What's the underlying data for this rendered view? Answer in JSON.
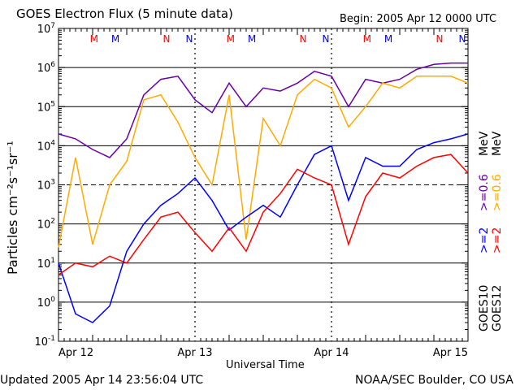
{
  "title": "GOES Electron Flux (5 minute data)",
  "begin": "Begin: 2005 Apr 12 0000 UTC",
  "updated": "Updated 2005 Apr 14 23:56:04 UTC",
  "credit": "NOAA/SEC Boulder, CO USA",
  "ylabel_text": "Particles cm⁻²s⁻¹sr⁻¹",
  "xlabel": "Universal Time",
  "legend": {
    "goes10": "GOES10",
    "goes12": "GOES12",
    "g10_2": ">=2",
    "g10_06": ">=0.6",
    "g12_2": ">=2",
    "g12_06": ">=0.6",
    "unit_a": "MeV",
    "unit_b": "MeV"
  },
  "colors": {
    "g10_2": "#0000ff",
    "g10_06": "#6600aa",
    "g12_2": "#ff0000",
    "g12_06": "#ffaa00"
  },
  "chart_data": {
    "type": "line",
    "title": "GOES Electron Flux (5 minute data)",
    "xlabel": "Universal Time",
    "ylabel": "Particles cm-2 s-1 sr-1",
    "y_scale": "log",
    "ylim": [
      0.1,
      10000000
    ],
    "xlim": [
      "2005-04-12 00:00",
      "2005-04-15 00:00"
    ],
    "x_ticks": [
      "Apr 12",
      "Apr 13",
      "Apr 14",
      "Apr 15"
    ],
    "y_ticks": [
      "10-1",
      "100",
      "101",
      "102",
      "103",
      "104",
      "105",
      "106",
      "107"
    ],
    "markers": [
      {
        "label": "M",
        "color": "#ff0000",
        "time": "Apr 12 06:15"
      },
      {
        "label": "M",
        "color": "#0000ff",
        "time": "Apr 12 10:00"
      },
      {
        "label": "N",
        "color": "#ff0000",
        "time": "Apr 12 19:00"
      },
      {
        "label": "N",
        "color": "#0000ff",
        "time": "Apr 12 23:00"
      },
      {
        "label": "M",
        "color": "#ff0000",
        "time": "Apr 13 06:15"
      },
      {
        "label": "M",
        "color": "#0000ff",
        "time": "Apr 13 10:00"
      },
      {
        "label": "N",
        "color": "#ff0000",
        "time": "Apr 13 19:00"
      },
      {
        "label": "N",
        "color": "#0000ff",
        "time": "Apr 13 23:00"
      },
      {
        "label": "M",
        "color": "#ff0000",
        "time": "Apr 14 06:15"
      },
      {
        "label": "M",
        "color": "#0000ff",
        "time": "Apr 14 10:00"
      },
      {
        "label": "N",
        "color": "#ff0000",
        "time": "Apr 14 19:00"
      },
      {
        "label": "N",
        "color": "#0000ff",
        "time": "Apr 14 23:00"
      }
    ],
    "x": [
      "Apr 12 00:00",
      "Apr 12 03:00",
      "Apr 12 06:00",
      "Apr 12 09:00",
      "Apr 12 12:00",
      "Apr 12 15:00",
      "Apr 12 18:00",
      "Apr 12 21:00",
      "Apr 13 00:00",
      "Apr 13 03:00",
      "Apr 13 06:00",
      "Apr 13 09:00",
      "Apr 13 12:00",
      "Apr 13 15:00",
      "Apr 13 18:00",
      "Apr 13 21:00",
      "Apr 14 00:00",
      "Apr 14 03:00",
      "Apr 14 06:00",
      "Apr 14 09:00",
      "Apr 14 12:00",
      "Apr 14 15:00",
      "Apr 14 18:00",
      "Apr 14 21:00",
      "Apr 15 00:00"
    ],
    "series": [
      {
        "name": "GOES10 >=0.6 MeV",
        "color": "#6600aa",
        "values": [
          20000,
          15000,
          8000,
          5000,
          15000,
          200000,
          500000,
          600000,
          150000,
          70000,
          400000,
          100000,
          300000,
          250000,
          400000,
          800000,
          600000,
          100000,
          500000,
          400000,
          500000,
          900000,
          1200000,
          1300000,
          1300000
        ]
      },
      {
        "name": "GOES12 >=0.6 MeV",
        "color": "#ffaa00",
        "values": [
          25,
          5000,
          30,
          1000,
          4000,
          150000,
          200000,
          40000,
          5000,
          1000,
          200000,
          40,
          50000,
          10000,
          200000,
          500000,
          300000,
          30000,
          100000,
          400000,
          300000,
          600000,
          600000,
          600000,
          400000
        ]
      },
      {
        "name": "GOES10 >=2 MeV",
        "color": "#0000ff",
        "values": [
          10,
          0.5,
          0.3,
          0.8,
          20,
          100,
          300,
          600,
          1500,
          400,
          70,
          150,
          300,
          150,
          1000,
          6000,
          10000,
          400,
          5000,
          3000,
          3000,
          8000,
          12000,
          15000,
          20000
        ]
      },
      {
        "name": "GOES12 >=2 MeV",
        "color": "#ff0000",
        "values": [
          5,
          10,
          8,
          15,
          10,
          40,
          150,
          200,
          60,
          20,
          80,
          20,
          200,
          600,
          2500,
          1500,
          1000,
          30,
          500,
          2000,
          1500,
          3000,
          5000,
          6000,
          2000
        ]
      }
    ]
  }
}
